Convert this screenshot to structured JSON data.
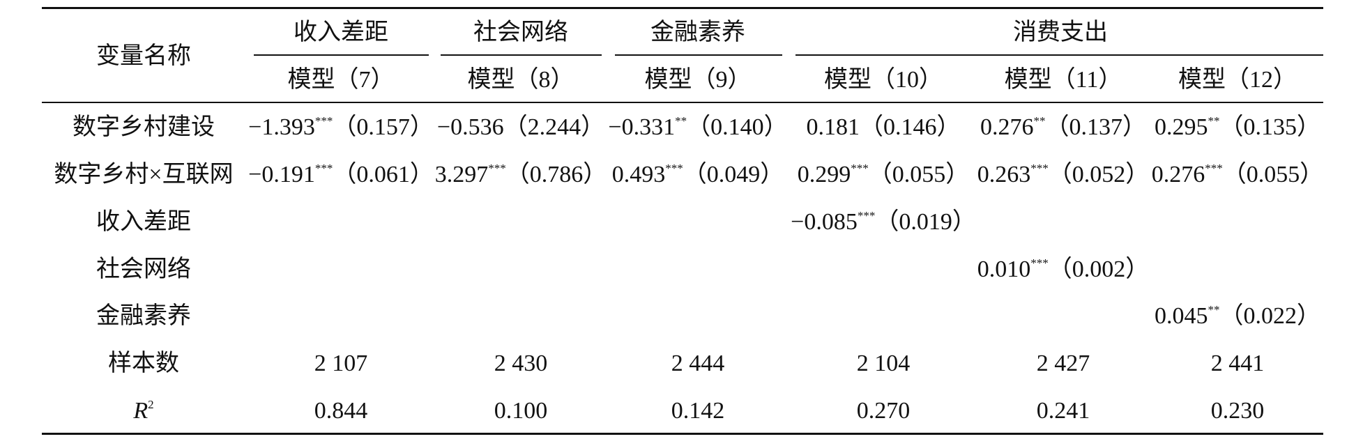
{
  "table": {
    "corner": "变量名称",
    "groups": [
      {
        "label": "收入差距",
        "span": 1
      },
      {
        "label": "社会网络",
        "span": 1
      },
      {
        "label": "金融素养",
        "span": 1
      },
      {
        "label": "消费支出",
        "span": 3
      }
    ],
    "models": [
      "模型（7）",
      "模型（8）",
      "模型（9）",
      "模型（10）",
      "模型（11）",
      "模型（12）"
    ],
    "rows": [
      {
        "label": "数字乡村建设",
        "cells": [
          {
            "coef": "−1.393",
            "stars": "***",
            "se": "（0.157）"
          },
          {
            "coef": "−0.536",
            "se": "（2.244）"
          },
          {
            "coef": "−0.331",
            "stars": "**",
            "se": "（0.140）"
          },
          {
            "coef": "0.181",
            "se": "（0.146）"
          },
          {
            "coef": "0.276",
            "stars": "**",
            "se": "（0.137）"
          },
          {
            "coef": "0.295",
            "stars": "**",
            "se": "（0.135）"
          }
        ]
      },
      {
        "label": "数字乡村×互联网",
        "cells": [
          {
            "coef": "−0.191",
            "stars": "***",
            "se": "（0.061）"
          },
          {
            "coef": "3.297",
            "stars": "***",
            "se": "（0.786）"
          },
          {
            "coef": "0.493",
            "stars": "***",
            "se": "（0.049）"
          },
          {
            "coef": "0.299",
            "stars": "***",
            "se": "（0.055）"
          },
          {
            "coef": "0.263",
            "stars": "***",
            "se": "（0.052）"
          },
          {
            "coef": "0.276",
            "stars": "***",
            "se": "（0.055）"
          }
        ]
      },
      {
        "label": "收入差距",
        "cells": [
          null,
          null,
          null,
          {
            "coef": "−0.085",
            "stars": "***",
            "se": "（0.019）"
          },
          null,
          null
        ]
      },
      {
        "label": "社会网络",
        "cells": [
          null,
          null,
          null,
          null,
          {
            "coef": "0.010",
            "stars": "***",
            "se": "（0.002）"
          },
          null
        ]
      },
      {
        "label": "金融素养",
        "cells": [
          null,
          null,
          null,
          null,
          null,
          {
            "coef": "0.045",
            "stars": "**",
            "se": "（0.022）"
          }
        ]
      },
      {
        "label": "样本数",
        "cells": [
          {
            "coef": "2 107"
          },
          {
            "coef": "2 430"
          },
          {
            "coef": "2 444"
          },
          {
            "coef": "2 104"
          },
          {
            "coef": "2 427"
          },
          {
            "coef": "2 441"
          }
        ]
      },
      {
        "label": {
          "text": "R",
          "sup": "2"
        },
        "cells": [
          {
            "coef": "0.844"
          },
          {
            "coef": "0.100"
          },
          {
            "coef": "0.142"
          },
          {
            "coef": "0.270"
          },
          {
            "coef": "0.241"
          },
          {
            "coef": "0.230"
          }
        ]
      }
    ]
  }
}
